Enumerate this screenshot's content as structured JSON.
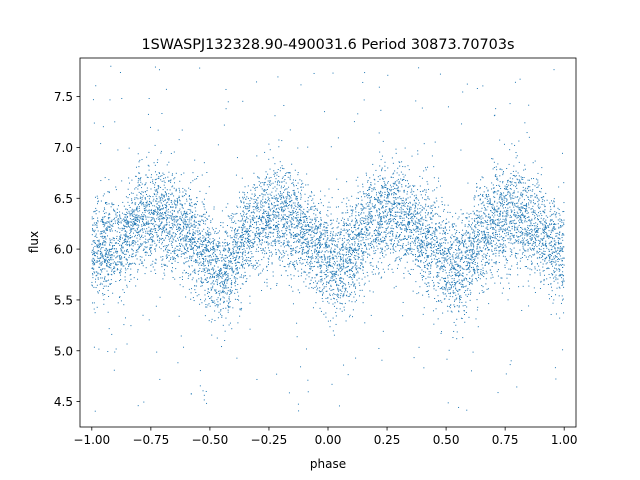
{
  "chart_data": {
    "type": "scatter",
    "title": "1SWASPJ132328.90-490031.6 Period 30873.70703s",
    "xlabel": "phase",
    "ylabel": "flux",
    "xlim": [
      -1.05,
      1.05
    ],
    "ylim": [
      4.25,
      7.88
    ],
    "x_ticks": [
      -1.0,
      -0.75,
      -0.5,
      -0.25,
      0.0,
      0.25,
      0.5,
      0.75,
      1.0
    ],
    "x_tick_labels": [
      "−1.00",
      "−0.75",
      "−0.50",
      "−0.25",
      "0.00",
      "0.25",
      "0.50",
      "0.75",
      "1.00"
    ],
    "y_ticks": [
      4.5,
      5.0,
      5.5,
      6.0,
      6.5,
      7.0,
      7.5
    ],
    "y_tick_labels": [
      "4.5",
      "5.0",
      "5.5",
      "6.0",
      "6.5",
      "7.0",
      "7.5"
    ],
    "grid": false,
    "legend": "none",
    "marker_color": "#1f77b4",
    "phase_range": [
      -1.0,
      1.0
    ],
    "mean_flux": 6.05,
    "light_curve_profile": {
      "phase": [
        -1.0,
        -0.9,
        -0.8,
        -0.7,
        -0.6,
        -0.5,
        -0.45,
        -0.4,
        -0.3,
        -0.2,
        -0.1,
        0.0,
        0.05,
        0.1,
        0.2,
        0.3,
        0.4,
        0.5,
        0.55,
        0.6,
        0.7,
        0.8,
        0.9,
        1.0
      ],
      "flux": [
        5.95,
        6.05,
        6.25,
        6.35,
        6.2,
        5.9,
        5.75,
        5.95,
        6.25,
        6.35,
        6.15,
        5.9,
        5.85,
        6.0,
        6.3,
        6.35,
        6.15,
        5.9,
        5.75,
        5.95,
        6.25,
        6.35,
        6.15,
        5.95
      ]
    },
    "scatter_std": 0.25
  }
}
